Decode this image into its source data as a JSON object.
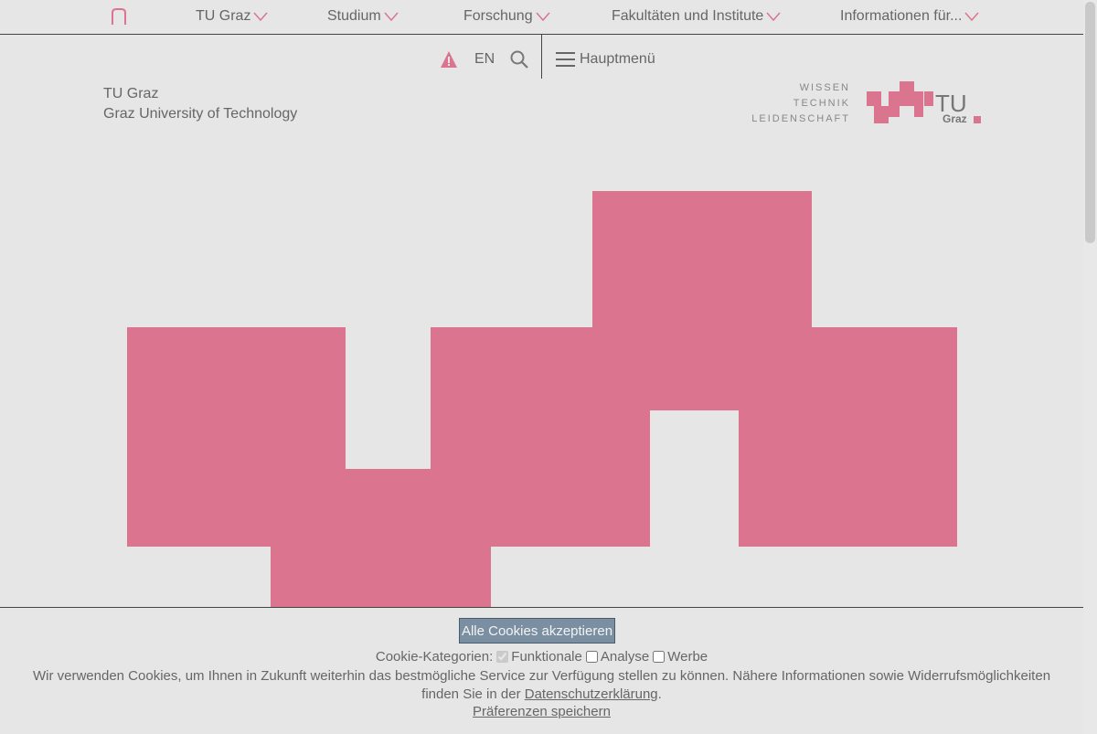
{
  "nav": {
    "items": [
      {
        "label": "TU Graz"
      },
      {
        "label": "Studium"
      },
      {
        "label": "Forschung"
      },
      {
        "label": "Fakultäten und Institute"
      },
      {
        "label": "Informationen für..."
      }
    ]
  },
  "toolbar": {
    "lang_label": "EN",
    "menu_label": "Hauptmenü"
  },
  "brand": {
    "name": "TU Graz",
    "subtitle": "Graz University of Technology",
    "slogan": [
      "WISSEN",
      "TECHNIK",
      "LEIDENSCHAFT"
    ],
    "logo_text_top": "TU",
    "logo_text_bottom": "Graz"
  },
  "cookie": {
    "accept_label": "Alle Cookies akzeptieren",
    "categories_label": "Cookie-Kategorien:",
    "categories": [
      {
        "label": "Funktionale",
        "checked": true,
        "disabled": true
      },
      {
        "label": "Analyse",
        "checked": false,
        "disabled": false
      },
      {
        "label": "Werbe",
        "checked": false,
        "disabled": false
      }
    ],
    "message": "Wir verwenden Cookies, um Ihnen in Zukunft weiterhin das bestmögliche Service zur Verfügung stellen zu können. Nähere Informationen sowie Widerrufsmöglichkeiten finden Sie in der ",
    "privacy_link": "Datenschutzerklärung",
    "message_end": ".",
    "save_label": "Präferenzen speichern"
  },
  "colors": {
    "brand_pink": "#db758f",
    "background": "#e6e6e6",
    "button_bg": "#7b8fa3"
  },
  "icons": [
    "home-icon",
    "chevron-down-icon",
    "warning-icon",
    "search-icon",
    "hamburger-icon"
  ]
}
